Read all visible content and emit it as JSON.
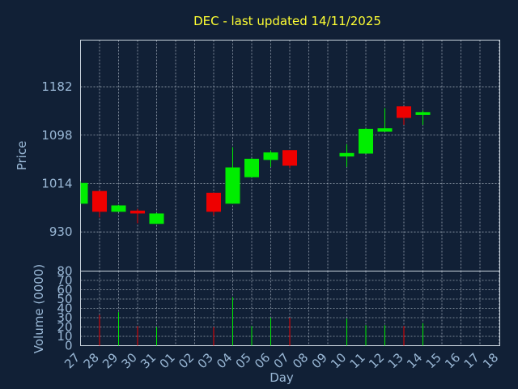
{
  "chart_data": {
    "type": "candlestick",
    "title": "DEC - last updated 14/11/2025",
    "xlabel": "Day",
    "price_ylabel": "Price",
    "volume_ylabel": "Volume (0000)",
    "x_ticks": [
      "27",
      "28",
      "29",
      "30",
      "31",
      "01",
      "02",
      "03",
      "04",
      "05",
      "06",
      "07",
      "08",
      "09",
      "10",
      "11",
      "12",
      "13",
      "14",
      "15",
      "16",
      "17",
      "18"
    ],
    "price_ticks": [
      930,
      1014,
      1098,
      1182
    ],
    "price_range": [
      862,
      1263
    ],
    "volume_ticks": [
      0,
      10,
      20,
      30,
      40,
      50,
      60,
      70,
      80
    ],
    "volume_range": [
      0,
      80
    ],
    "grid": true,
    "colors": {
      "up": "#00ee00",
      "down": "#ee0000",
      "background": "#112036",
      "title": "#ffff33",
      "labels": "#9ab8d6",
      "grid": "#c8d2dc"
    },
    "candles": [
      {
        "day": "27",
        "open": 979,
        "high": 1018,
        "low": 979,
        "close": 1015
      },
      {
        "day": "28",
        "open": 1001,
        "high": 1001,
        "low": 955,
        "close": 965
      },
      {
        "day": "29",
        "open": 965,
        "high": 977,
        "low": 965,
        "close": 976
      },
      {
        "day": "30",
        "open": 967,
        "high": 970,
        "low": 945,
        "close": 962
      },
      {
        "day": "31",
        "open": 944,
        "high": 963,
        "low": 944,
        "close": 962
      },
      {
        "day": "03",
        "open": 998,
        "high": 998,
        "low": 958,
        "close": 965
      },
      {
        "day": "04",
        "open": 979,
        "high": 1077,
        "low": 979,
        "close": 1042
      },
      {
        "day": "05",
        "open": 1025,
        "high": 1058,
        "low": 1025,
        "close": 1057
      },
      {
        "day": "06",
        "open": 1055,
        "high": 1071,
        "low": 1043,
        "close": 1068
      },
      {
        "day": "07",
        "open": 1072,
        "high": 1072,
        "low": 1041,
        "close": 1045
      },
      {
        "day": "10",
        "open": 1061,
        "high": 1082,
        "low": 1043,
        "close": 1067
      },
      {
        "day": "11",
        "open": 1066,
        "high": 1110,
        "low": 1066,
        "close": 1109
      },
      {
        "day": "12",
        "open": 1104,
        "high": 1145,
        "low": 1104,
        "close": 1110
      },
      {
        "day": "13",
        "open": 1148,
        "high": 1148,
        "low": 1116,
        "close": 1128
      },
      {
        "day": "14",
        "open": 1133,
        "high": 1141,
        "low": 1116,
        "close": 1138
      }
    ],
    "volume": [
      {
        "day": "28",
        "value": 33,
        "dir": "down"
      },
      {
        "day": "29",
        "value": 36,
        "dir": "up"
      },
      {
        "day": "30",
        "value": 21,
        "dir": "down"
      },
      {
        "day": "31",
        "value": 20,
        "dir": "up"
      },
      {
        "day": "03",
        "value": 20,
        "dir": "down"
      },
      {
        "day": "04",
        "value": 52,
        "dir": "up"
      },
      {
        "day": "05",
        "value": 21,
        "dir": "up"
      },
      {
        "day": "06",
        "value": 30,
        "dir": "up"
      },
      {
        "day": "07",
        "value": 30,
        "dir": "down"
      },
      {
        "day": "10",
        "value": 29,
        "dir": "up"
      },
      {
        "day": "11",
        "value": 22,
        "dir": "up"
      },
      {
        "day": "12",
        "value": 22,
        "dir": "up"
      },
      {
        "day": "13",
        "value": 21,
        "dir": "down"
      },
      {
        "day": "14",
        "value": 24,
        "dir": "up"
      }
    ]
  }
}
